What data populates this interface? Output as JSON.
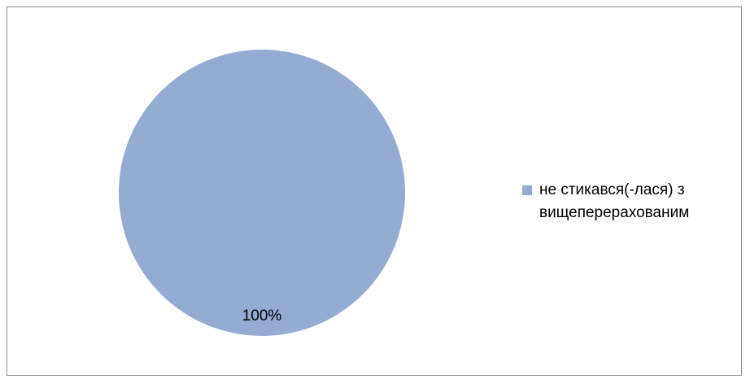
{
  "chart_data": {
    "type": "pie",
    "title": "",
    "slices": [
      {
        "label": "не стикався(-лася) з вищеперерахованим",
        "value": 100,
        "data_label": "100%",
        "color": "#95abd1"
      }
    ],
    "legend_position": "right"
  },
  "frame": {
    "border_color": "#8c8c8c"
  }
}
